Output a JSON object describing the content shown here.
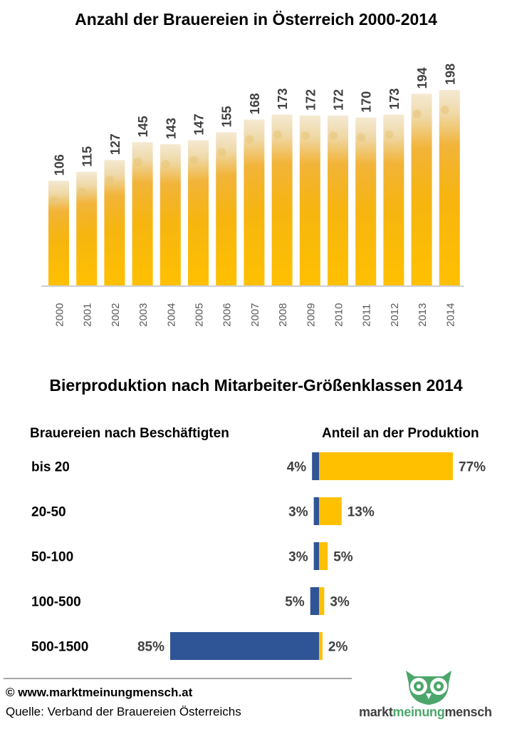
{
  "chart_data": [
    {
      "type": "bar",
      "title": "Anzahl der Brauereien in Österreich 2000-2014",
      "categories": [
        "2000",
        "2001",
        "2002",
        "2003",
        "2004",
        "2005",
        "2006",
        "2007",
        "2008",
        "2009",
        "2010",
        "2011",
        "2012",
        "2013",
        "2014"
      ],
      "values": [
        106,
        115,
        127,
        145,
        143,
        147,
        155,
        168,
        173,
        172,
        172,
        170,
        173,
        194,
        198
      ],
      "ylim": [
        0,
        210
      ],
      "grid": false,
      "legend": "none",
      "bar_color": "#FFC000"
    },
    {
      "type": "bar",
      "orientation": "horizontal-diverging",
      "title": "Bierproduktion nach Mitarbeiter-Größenklassen 2014",
      "left_header": "Brauereien nach Beschäftigten",
      "right_header": "Anteil an der Produktion",
      "categories": [
        "bis 20",
        "20-50",
        "50-100",
        "100-500",
        "500-1500"
      ],
      "series": [
        {
          "values": [
            4,
            3,
            3,
            5,
            85
          ],
          "labels": [
            "4%",
            "3%",
            "3%",
            "5%",
            "85%"
          ],
          "color": "#2F5597"
        },
        {
          "values": [
            77,
            13,
            5,
            3,
            2
          ],
          "labels": [
            "77%",
            "13%",
            "5%",
            "3%",
            "2%"
          ],
          "color": "#FFC000"
        }
      ]
    }
  ],
  "footer": {
    "website": "© www.marktmeinungmensch.at",
    "source": "Quelle: Verband der Brauereien Österreichs"
  },
  "logo": {
    "text_left": "markt",
    "text_mid": "meinung",
    "text_right": "mensch",
    "color_dark": "#404040",
    "color_green": "#4CA66B"
  }
}
